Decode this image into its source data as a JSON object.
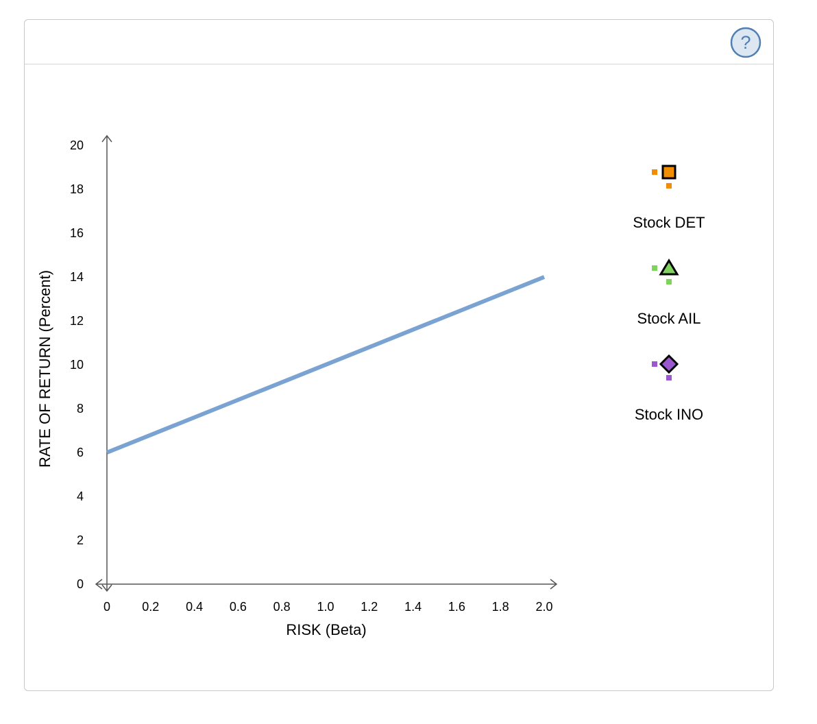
{
  "help": {
    "icon": "question-mark-icon",
    "symbol": "?"
  },
  "chart_data": {
    "type": "line",
    "xlabel": "RISK (Beta)",
    "ylabel": "RATE OF RETURN (Percent)",
    "xlim": [
      0,
      2.0
    ],
    "ylim": [
      0,
      20
    ],
    "x_ticks": [
      "0",
      "0.2",
      "0.4",
      "0.6",
      "0.8",
      "1.0",
      "1.2",
      "1.4",
      "1.6",
      "1.8",
      "2.0"
    ],
    "y_ticks": [
      "0",
      "2",
      "4",
      "6",
      "8",
      "10",
      "12",
      "14",
      "16",
      "18",
      "20"
    ],
    "grid": false,
    "series": [
      {
        "x": [
          0,
          2.0
        ],
        "y": [
          6,
          14
        ],
        "color": "#7aa3d1"
      }
    ],
    "legend_position": "right",
    "legend": [
      {
        "label": "Stock DET",
        "marker": "square",
        "color": "#f28c00"
      },
      {
        "label": "Stock AIL",
        "marker": "triangle",
        "color": "#7fd35c"
      },
      {
        "label": "Stock INO",
        "marker": "diamond",
        "color": "#9b59d0"
      }
    ]
  }
}
